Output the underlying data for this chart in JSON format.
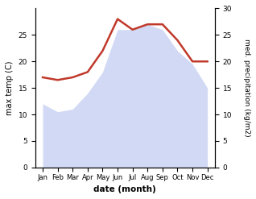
{
  "months": [
    "Jan",
    "Feb",
    "Mar",
    "Apr",
    "May",
    "Jun",
    "Jul",
    "Aug",
    "Sep",
    "Oct",
    "Nov",
    "Dec"
  ],
  "max_temp": [
    12,
    10.5,
    11,
    14,
    18,
    26,
    26,
    27,
    26,
    22,
    19.5,
    15
  ],
  "precipitation": [
    17,
    16.5,
    17,
    18,
    22,
    28,
    26,
    27,
    27,
    24,
    20,
    20
  ],
  "temp_fill_color": "#bfc9f0",
  "precip_color": "#c0392b",
  "xlabel": "date (month)",
  "ylabel_left": "max temp (C)",
  "ylabel_right": "med. precipitation (kg/m2)",
  "ylim_left": [
    0,
    30
  ],
  "ylim_right": [
    0,
    30
  ],
  "yticks_left": [
    0,
    5,
    10,
    15,
    20,
    25
  ],
  "yticks_right": [
    0,
    5,
    10,
    15,
    20,
    25,
    30
  ],
  "background_color": "#ffffff"
}
